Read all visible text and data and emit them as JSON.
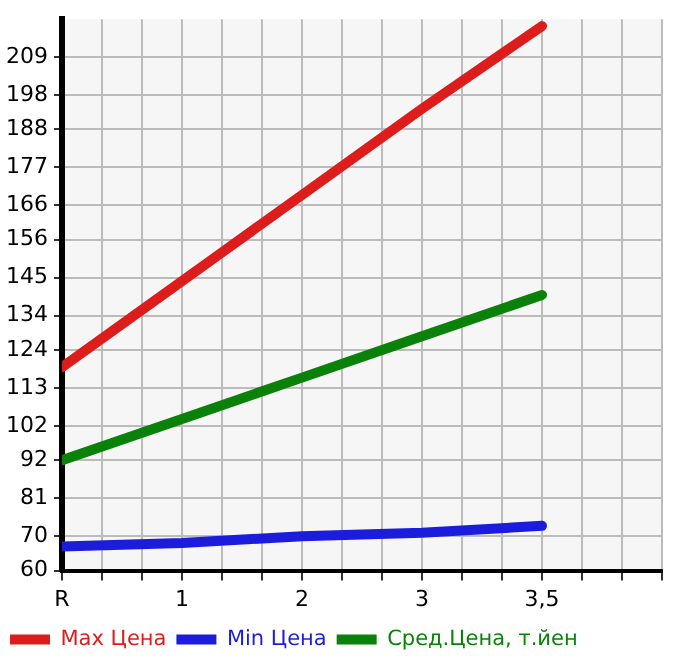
{
  "chart_data": {
    "type": "line",
    "categories": [
      "R",
      "1",
      "2",
      "3",
      "3,5"
    ],
    "series": [
      {
        "name": "Max Цена",
        "color": "#dd1c1c",
        "values": [
          119,
          144,
          169,
          194,
          218
        ]
      },
      {
        "name": "Min Цена",
        "color": "#1c1cdd",
        "values": [
          67,
          68,
          70,
          71,
          73
        ]
      },
      {
        "name": "Сред.Цена, т.йен",
        "color": "#0a820a",
        "values": [
          92,
          104,
          116,
          128,
          140
        ]
      }
    ],
    "ylim": [
      60,
      220
    ],
    "yticks": [
      60,
      70,
      81,
      92,
      102,
      113,
      124,
      134,
      145,
      156,
      166,
      177,
      188,
      198,
      209
    ],
    "grid": true,
    "legend": "bottom",
    "marker": "none",
    "line_style": "solid"
  }
}
